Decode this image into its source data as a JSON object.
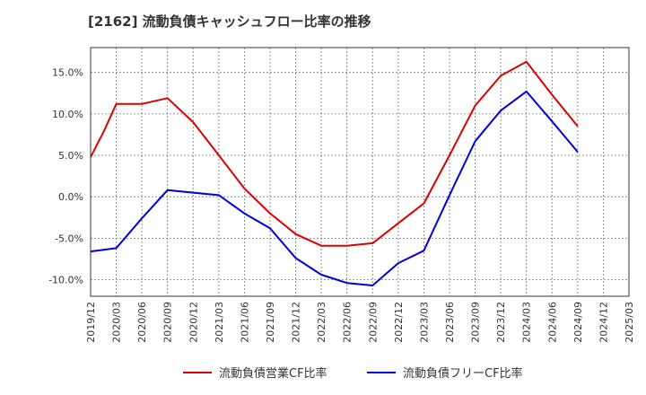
{
  "chart_data": {
    "type": "line",
    "title": "[2162]  流動負債キャッシュフロー比率の推移",
    "xlabel": "",
    "ylabel": "",
    "ylim": [
      -12,
      18
    ],
    "yticks": [
      15,
      10,
      5,
      0,
      -5,
      -10
    ],
    "ytick_labels": [
      "15.0%",
      "10.0%",
      "5.0%",
      "0.0%",
      "-5.0%",
      "-10.0%"
    ],
    "x_ticks": [
      "2019/12",
      "2020/03",
      "2020/06",
      "2020/09",
      "2020/12",
      "2021/03",
      "2021/06",
      "2021/09",
      "2021/12",
      "2022/03",
      "2022/06",
      "2022/09",
      "2022/12",
      "2023/03",
      "2023/06",
      "2023/09",
      "2023/12",
      "2024/03",
      "2024/06",
      "2024/09",
      "2024/12",
      "2025/03"
    ],
    "grid": true,
    "legend_position": "bottom",
    "series": [
      {
        "name": "流動負債営業CF比率",
        "color": "#dd0000",
        "x": [
          0,
          0.5,
          1,
          2,
          3,
          4,
          5,
          6,
          7,
          8,
          9,
          10,
          11,
          12,
          13,
          14,
          15,
          16,
          17,
          18,
          19
        ],
        "values": [
          4.8,
          7.8,
          11.2,
          11.2,
          11.9,
          9.0,
          5.0,
          1.0,
          -2.0,
          -4.5,
          -5.9,
          -5.9,
          -5.6,
          -3.2,
          -0.8,
          5.0,
          11.0,
          14.6,
          16.3,
          12.3,
          8.5
        ]
      },
      {
        "name": "流動負債フリーCF比率",
        "color": "#0000dd",
        "x": [
          0,
          1,
          2,
          3,
          4,
          5,
          6,
          7,
          8,
          9,
          10,
          11,
          12,
          13,
          14,
          15,
          16,
          17,
          18,
          19
        ],
        "values": [
          -6.6,
          -6.2,
          -2.6,
          0.8,
          0.5,
          0.2,
          -2.0,
          -3.8,
          -7.4,
          -9.4,
          -10.4,
          -10.7,
          -8.0,
          -6.5,
          0.2,
          6.7,
          10.4,
          12.7,
          9.1,
          5.4
        ]
      }
    ]
  }
}
